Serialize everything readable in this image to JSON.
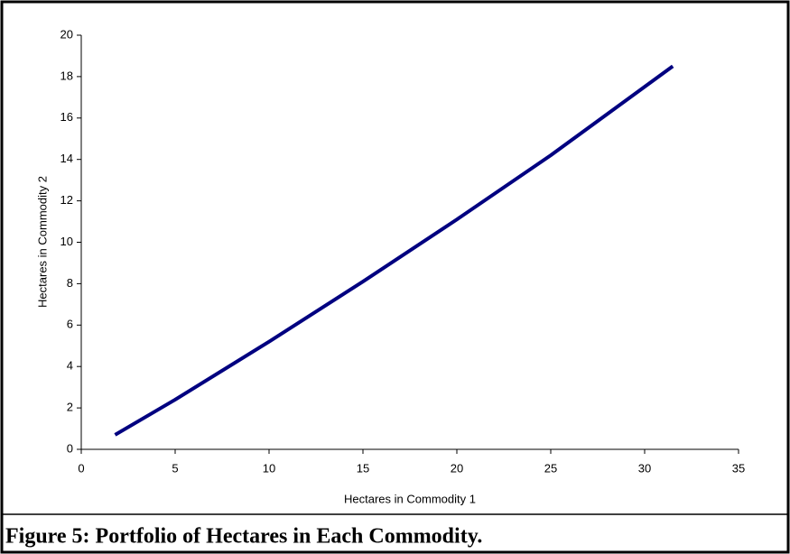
{
  "chart_data": {
    "type": "line",
    "xlabel": "Hectares in Commodity 1",
    "ylabel": "Hectares in Commodity 2",
    "x": [
      1.8,
      5,
      10,
      15,
      20,
      25,
      31.5
    ],
    "series": [
      {
        "name": "Portfolio",
        "color": "#000080",
        "values": [
          0.7,
          2.4,
          5.2,
          8.1,
          11.1,
          14.2,
          18.5
        ]
      }
    ],
    "xlim": [
      0,
      35
    ],
    "xticks": [
      0,
      5,
      10,
      15,
      20,
      25,
      30,
      35
    ],
    "ylim": [
      0,
      20
    ],
    "yticks": [
      0,
      2,
      4,
      6,
      8,
      10,
      12,
      14,
      16,
      18,
      20
    ],
    "grid": false,
    "legend": false
  },
  "caption": "Figure 5:  Portfolio of Hectares in Each Commodity."
}
